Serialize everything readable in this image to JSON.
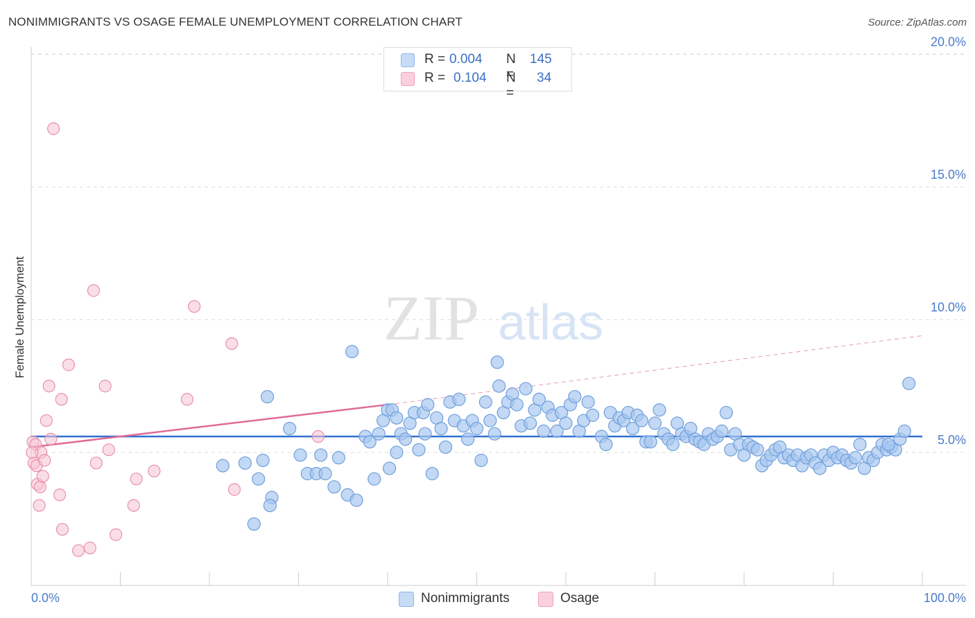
{
  "header": {
    "title": "NONIMMIGRANTS VS OSAGE FEMALE UNEMPLOYMENT CORRELATION CHART",
    "source": "Source: ZipAtlas.com"
  },
  "watermark": {
    "zip": "ZIP",
    "atlas": "atlas"
  },
  "legend": {
    "rows": [
      {
        "r_label": "R =",
        "r_value": "0.004",
        "n_label": "N =",
        "n_value": "145",
        "color": "#a8c8f0"
      },
      {
        "r_label": "R =",
        "r_value": "0.104",
        "n_label": "N =",
        "n_value": "34",
        "color": "#f6b8cc"
      }
    ]
  },
  "bottom_legend": [
    {
      "label": "Nonimmigrants",
      "color": "#a8c8f0"
    },
    {
      "label": "Osage",
      "color": "#f6b8cc"
    }
  ],
  "colors": {
    "blue_fill": "#a8c8f0",
    "blue_stroke": "#6f9fdc",
    "blue_line": "#2f6fd0",
    "pink_fill": "#f6c2d2",
    "pink_stroke": "#e890ac",
    "pink_line": "#e06a95",
    "tick_label": "#4a7bc8"
  },
  "chart_data": {
    "type": "scatter",
    "title": "NONIMMIGRANTS VS OSAGE FEMALE UNEMPLOYMENT CORRELATION CHART",
    "xlabel": "",
    "ylabel": "Female Unemployment",
    "xlim": [
      0,
      100
    ],
    "ylim": [
      0,
      20
    ],
    "x_tick_labels": [
      "0.0%",
      "100.0%"
    ],
    "y_ticks": [
      5,
      10,
      15,
      20
    ],
    "y_tick_labels": [
      "5.0%",
      "10.0%",
      "15.0%",
      "20.0%"
    ],
    "grid": true,
    "series": [
      {
        "name": "Nonimmigrants",
        "trend": {
          "x": [
            0,
            100
          ],
          "y": [
            5.6,
            5.6
          ]
        },
        "points": [
          [
            21.5,
            4.5
          ],
          [
            24.0,
            4.6
          ],
          [
            25.5,
            4.0
          ],
          [
            26.0,
            4.7
          ],
          [
            26.5,
            7.1
          ],
          [
            25.0,
            2.3
          ],
          [
            27.0,
            3.3
          ],
          [
            26.8,
            3.0
          ],
          [
            29.0,
            5.9
          ],
          [
            30.2,
            4.9
          ],
          [
            31.0,
            4.2
          ],
          [
            32.0,
            4.2
          ],
          [
            32.5,
            4.9
          ],
          [
            33.0,
            4.2
          ],
          [
            34.0,
            3.7
          ],
          [
            34.5,
            4.8
          ],
          [
            35.5,
            3.4
          ],
          [
            36.0,
            8.8
          ],
          [
            36.5,
            3.2
          ],
          [
            37.5,
            5.6
          ],
          [
            38.0,
            5.4
          ],
          [
            38.5,
            4.0
          ],
          [
            39.0,
            5.7
          ],
          [
            39.5,
            6.2
          ],
          [
            40.0,
            6.6
          ],
          [
            40.2,
            4.4
          ],
          [
            40.5,
            6.6
          ],
          [
            41.0,
            5.0
          ],
          [
            41.5,
            5.7
          ],
          [
            41.0,
            6.3
          ],
          [
            42.0,
            5.5
          ],
          [
            42.5,
            6.1
          ],
          [
            43.0,
            6.5
          ],
          [
            43.5,
            5.1
          ],
          [
            44.0,
            6.5
          ],
          [
            44.5,
            6.8
          ],
          [
            44.2,
            5.7
          ],
          [
            45.0,
            4.2
          ],
          [
            45.5,
            6.3
          ],
          [
            46.0,
            5.9
          ],
          [
            46.5,
            5.2
          ],
          [
            47.0,
            6.9
          ],
          [
            47.5,
            6.2
          ],
          [
            48.0,
            7.0
          ],
          [
            48.5,
            6.0
          ],
          [
            49.0,
            5.5
          ],
          [
            49.5,
            6.2
          ],
          [
            50.0,
            5.9
          ],
          [
            50.5,
            4.7
          ],
          [
            51.0,
            6.9
          ],
          [
            51.5,
            6.2
          ],
          [
            52.0,
            5.7
          ],
          [
            52.3,
            8.4
          ],
          [
            52.5,
            7.5
          ],
          [
            53.0,
            6.5
          ],
          [
            53.5,
            6.9
          ],
          [
            54.0,
            7.2
          ],
          [
            54.5,
            6.8
          ],
          [
            55.0,
            6.0
          ],
          [
            55.5,
            7.4
          ],
          [
            56.0,
            6.1
          ],
          [
            56.5,
            6.6
          ],
          [
            57.0,
            7.0
          ],
          [
            57.5,
            5.8
          ],
          [
            58.0,
            6.7
          ],
          [
            58.5,
            6.4
          ],
          [
            59.0,
            5.8
          ],
          [
            59.5,
            6.5
          ],
          [
            60.0,
            6.1
          ],
          [
            60.5,
            6.8
          ],
          [
            61.0,
            7.1
          ],
          [
            61.5,
            5.8
          ],
          [
            62.0,
            6.2
          ],
          [
            62.5,
            6.9
          ],
          [
            63.0,
            6.4
          ],
          [
            64.0,
            5.6
          ],
          [
            64.5,
            5.3
          ],
          [
            65.0,
            6.5
          ],
          [
            65.5,
            6.0
          ],
          [
            66.0,
            6.3
          ],
          [
            66.5,
            6.2
          ],
          [
            67.0,
            6.5
          ],
          [
            67.5,
            5.9
          ],
          [
            68.0,
            6.4
          ],
          [
            68.5,
            6.2
          ],
          [
            69.0,
            5.4
          ],
          [
            69.5,
            5.4
          ],
          [
            70.0,
            6.1
          ],
          [
            70.5,
            6.6
          ],
          [
            71.0,
            5.7
          ],
          [
            71.5,
            5.5
          ],
          [
            72.0,
            5.3
          ],
          [
            72.5,
            6.1
          ],
          [
            73.0,
            5.7
          ],
          [
            73.5,
            5.6
          ],
          [
            74.0,
            5.9
          ],
          [
            74.5,
            5.5
          ],
          [
            75.0,
            5.4
          ],
          [
            75.5,
            5.3
          ],
          [
            76.0,
            5.7
          ],
          [
            76.5,
            5.5
          ],
          [
            77.0,
            5.6
          ],
          [
            77.5,
            5.8
          ],
          [
            78.0,
            6.5
          ],
          [
            78.5,
            5.1
          ],
          [
            79.0,
            5.7
          ],
          [
            79.5,
            5.3
          ],
          [
            80.0,
            4.9
          ],
          [
            80.5,
            5.3
          ],
          [
            81.0,
            5.2
          ],
          [
            81.5,
            5.1
          ],
          [
            82.0,
            4.5
          ],
          [
            82.5,
            4.7
          ],
          [
            83.0,
            4.9
          ],
          [
            83.5,
            5.1
          ],
          [
            84.0,
            5.2
          ],
          [
            84.5,
            4.8
          ],
          [
            85.0,
            4.9
          ],
          [
            85.5,
            4.7
          ],
          [
            86.0,
            4.9
          ],
          [
            86.5,
            4.5
          ],
          [
            87.0,
            4.8
          ],
          [
            87.5,
            4.9
          ],
          [
            88.0,
            4.6
          ],
          [
            88.5,
            4.4
          ],
          [
            89.0,
            4.9
          ],
          [
            89.5,
            4.7
          ],
          [
            90.0,
            5.0
          ],
          [
            90.5,
            4.8
          ],
          [
            91.0,
            4.9
          ],
          [
            91.5,
            4.7
          ],
          [
            92.0,
            4.6
          ],
          [
            92.5,
            4.8
          ],
          [
            93.0,
            5.3
          ],
          [
            93.5,
            4.4
          ],
          [
            94.0,
            4.8
          ],
          [
            94.5,
            4.7
          ],
          [
            95.0,
            5.0
          ],
          [
            95.5,
            5.3
          ],
          [
            96.0,
            5.1
          ],
          [
            96.5,
            5.2
          ],
          [
            97.0,
            5.1
          ],
          [
            97.5,
            5.5
          ],
          [
            98.0,
            5.8
          ],
          [
            98.5,
            7.6
          ],
          [
            96.2,
            5.3
          ]
        ]
      },
      {
        "name": "Osage",
        "trend": {
          "x": [
            0,
            40
          ],
          "y": [
            5.2,
            6.8
          ],
          "x_dashed": [
            40,
            100
          ],
          "y_dashed": [
            6.8,
            9.4
          ]
        },
        "points": [
          [
            0.2,
            5.4
          ],
          [
            0.3,
            4.6
          ],
          [
            0.5,
            5.3
          ],
          [
            0.6,
            4.5
          ],
          [
            0.7,
            3.8
          ],
          [
            0.9,
            3.0
          ],
          [
            1.0,
            3.7
          ],
          [
            1.1,
            5.0
          ],
          [
            1.3,
            4.1
          ],
          [
            1.5,
            4.7
          ],
          [
            1.7,
            6.2
          ],
          [
            2.0,
            7.5
          ],
          [
            2.2,
            5.5
          ],
          [
            2.5,
            17.2
          ],
          [
            3.2,
            3.4
          ],
          [
            3.4,
            7.0
          ],
          [
            3.5,
            2.1
          ],
          [
            4.2,
            8.3
          ],
          [
            5.3,
            1.3
          ],
          [
            6.6,
            1.4
          ],
          [
            7.0,
            11.1
          ],
          [
            7.3,
            4.6
          ],
          [
            8.3,
            7.5
          ],
          [
            8.7,
            5.1
          ],
          [
            9.5,
            1.9
          ],
          [
            11.5,
            3.0
          ],
          [
            11.8,
            4.0
          ],
          [
            13.8,
            4.3
          ],
          [
            17.5,
            7.0
          ],
          [
            18.3,
            10.5
          ],
          [
            22.8,
            3.6
          ],
          [
            22.5,
            9.1
          ],
          [
            32.2,
            5.6
          ],
          [
            0.1,
            5.0
          ]
        ]
      }
    ]
  }
}
